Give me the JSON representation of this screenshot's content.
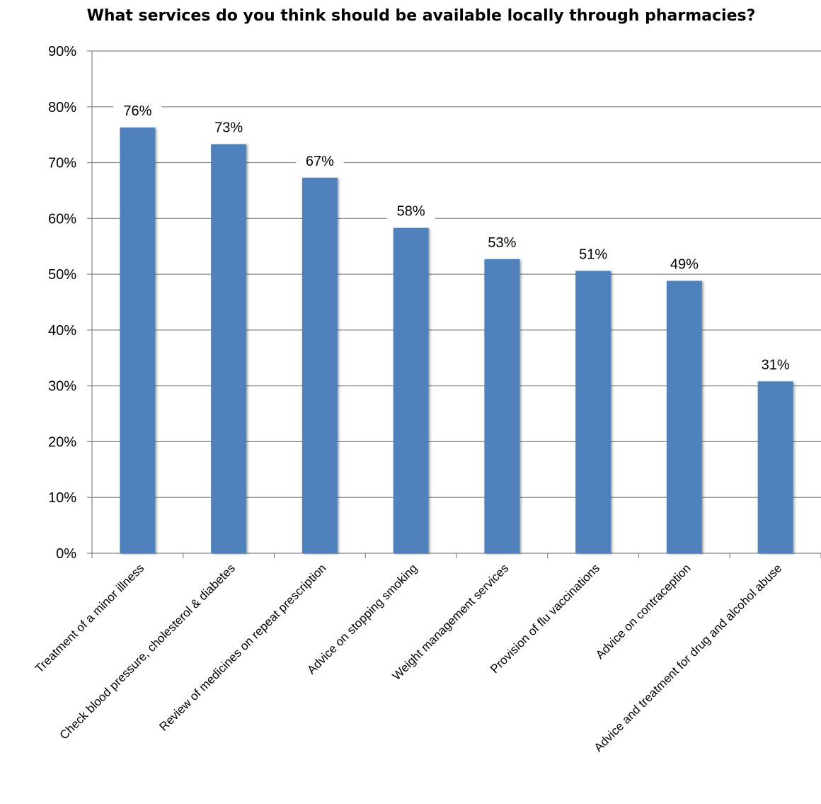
{
  "chart_data": {
    "type": "bar",
    "title": "What services do you think should be available locally through pharmacies?",
    "categories": [
      "Treatment of a minor illness",
      "Check blood pressure, cholesterol & diabetes",
      "Review of medicines on repeat prescription",
      "Advice on stopping smoking",
      "Weight management services",
      "Provision of flu vaccinations",
      "Advice on contraception",
      "Advice and treatment  for drug and alcohol abuse"
    ],
    "values": [
      76.3,
      73.3,
      67.3,
      58.3,
      52.7,
      50.6,
      48.8,
      30.8
    ],
    "data_labels": [
      "76%",
      "73%",
      "67%",
      "58%",
      "53%",
      "51%",
      "49%",
      "31%"
    ],
    "yticks": [
      "0%",
      "10%",
      "20%",
      "30%",
      "40%",
      "50%",
      "60%",
      "70%",
      "80%",
      "90%"
    ],
    "ylim": [
      0,
      90
    ],
    "grid": true,
    "legend": false,
    "bar_color": "#4F81BD",
    "grid_color": "#878787"
  }
}
